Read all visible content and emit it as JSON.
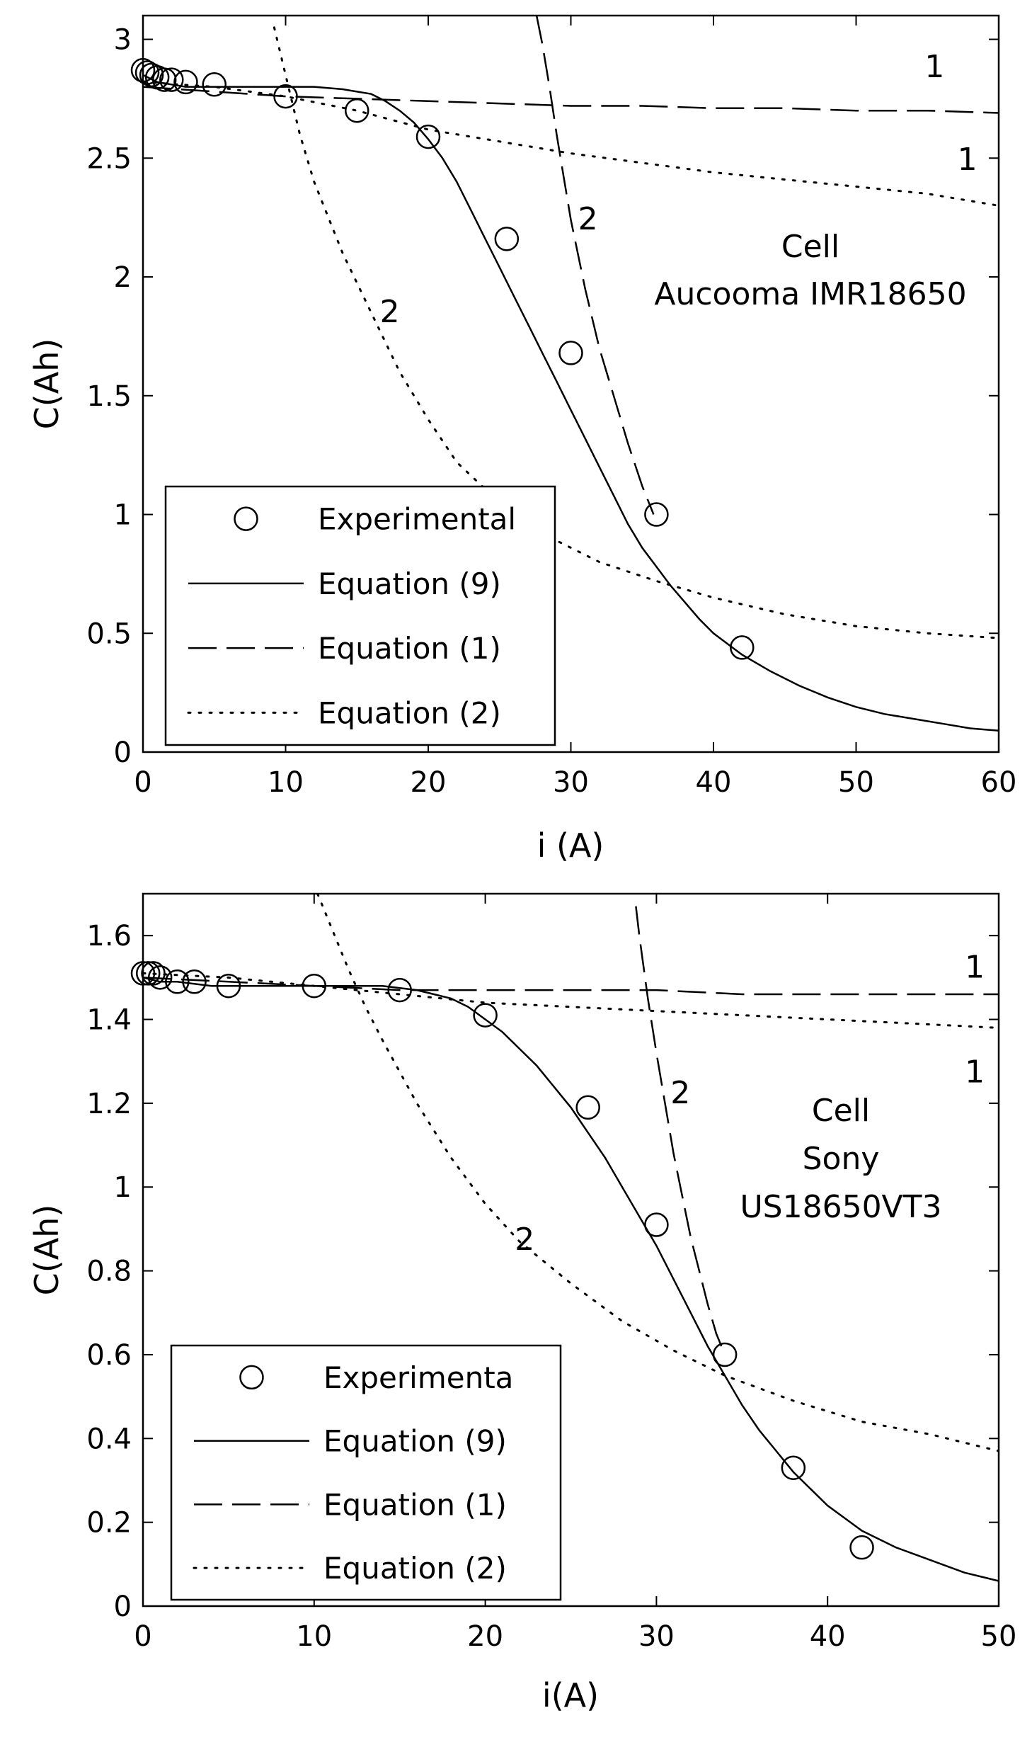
{
  "chart_data": [
    {
      "type": "line",
      "title": "",
      "xlabel": "i (A)",
      "ylabel": "C(Ah)",
      "xlim": [
        0,
        60
      ],
      "ylim": [
        0,
        3.1
      ],
      "xticks": [
        0,
        10,
        20,
        30,
        40,
        50,
        60
      ],
      "xtick_labels": [
        "0",
        "10",
        "20",
        "30",
        "40",
        "50",
        "60"
      ],
      "yticks": [
        0,
        0.5,
        1,
        1.5,
        2,
        2.5,
        3
      ],
      "ytick_labels": [
        "0",
        "0.5",
        "1",
        "1.5",
        "2",
        "2.5",
        "3"
      ],
      "grid": false,
      "legend_position": "bottom-left",
      "cell_label": [
        "Cell",
        "Aucooma IMR18650"
      ],
      "legend": [
        {
          "label": "Experimental",
          "style": "circle"
        },
        {
          "label": "Equation (9)",
          "style": "solid"
        },
        {
          "label": "Equation (1)",
          "style": "dashed"
        },
        {
          "label": "Equation (2)",
          "style": "dotted"
        }
      ],
      "series": [
        {
          "name": "Experimental",
          "style": "circle",
          "x": [
            0,
            0.3,
            0.6,
            1,
            1.5,
            2,
            3,
            5,
            10,
            15,
            20,
            25.5,
            30,
            36,
            42
          ],
          "y": [
            2.87,
            2.86,
            2.85,
            2.84,
            2.83,
            2.83,
            2.82,
            2.81,
            2.76,
            2.7,
            2.59,
            2.16,
            1.68,
            1.0,
            0.44
          ]
        },
        {
          "name": "Equation (9)",
          "style": "solid",
          "x": [
            0,
            1,
            2,
            3,
            5,
            8,
            10,
            12,
            14,
            15,
            16,
            17,
            18,
            19,
            20,
            21,
            22,
            23,
            24,
            25,
            26,
            27,
            28,
            29,
            30,
            31,
            32,
            33,
            34,
            35,
            36,
            37,
            38,
            39,
            40,
            42,
            44,
            46,
            48,
            50,
            52,
            54,
            56,
            58,
            60
          ],
          "y": [
            2.85,
            2.82,
            2.81,
            2.8,
            2.8,
            2.8,
            2.8,
            2.8,
            2.79,
            2.78,
            2.77,
            2.74,
            2.7,
            2.65,
            2.58,
            2.5,
            2.4,
            2.28,
            2.16,
            2.04,
            1.92,
            1.8,
            1.68,
            1.56,
            1.44,
            1.32,
            1.2,
            1.08,
            0.96,
            0.86,
            0.78,
            0.7,
            0.63,
            0.56,
            0.5,
            0.41,
            0.34,
            0.28,
            0.23,
            0.19,
            0.16,
            0.14,
            0.12,
            0.1,
            0.09
          ]
        },
        {
          "name": "Equation (1), curve 1",
          "style": "dashed",
          "x": [
            0,
            5,
            10,
            15,
            20,
            25,
            30,
            35,
            40,
            45,
            50,
            55,
            60
          ],
          "y": [
            2.8,
            2.78,
            2.76,
            2.75,
            2.74,
            2.73,
            2.72,
            2.72,
            2.71,
            2.71,
            2.7,
            2.7,
            2.69
          ]
        },
        {
          "name": "Equation (1), curve 2",
          "style": "dashed",
          "x": [
            27.6,
            28,
            28.5,
            29,
            29.5,
            30,
            31,
            32,
            33,
            34,
            35,
            35.8
          ],
          "y": [
            3.1,
            2.98,
            2.8,
            2.6,
            2.42,
            2.24,
            1.95,
            1.7,
            1.5,
            1.3,
            1.12,
            1.0
          ]
        },
        {
          "name": "Equation (2), curve 1",
          "style": "dotted",
          "x": [
            0,
            5,
            10,
            15,
            20,
            25,
            30,
            35,
            40,
            45,
            50,
            55,
            60
          ],
          "y": [
            2.82,
            2.8,
            2.76,
            2.7,
            2.62,
            2.57,
            2.52,
            2.48,
            2.44,
            2.41,
            2.38,
            2.35,
            2.3
          ]
        },
        {
          "name": "Equation (2), curve 2",
          "style": "dotted",
          "x": [
            9.2,
            10,
            11,
            12,
            14,
            16,
            18,
            20,
            22,
            25,
            28,
            32,
            36,
            40,
            45,
            50,
            55,
            60
          ],
          "y": [
            3.05,
            2.85,
            2.6,
            2.4,
            2.1,
            1.85,
            1.6,
            1.4,
            1.22,
            1.05,
            0.92,
            0.8,
            0.72,
            0.65,
            0.58,
            0.53,
            0.5,
            0.48
          ]
        }
      ],
      "annotations": [
        {
          "text": "1",
          "x": 55.5,
          "y": 2.84
        },
        {
          "text": "1",
          "x": 57.8,
          "y": 2.45
        },
        {
          "text": "2",
          "x": 31.2,
          "y": 2.2
        },
        {
          "text": "2",
          "x": 17.3,
          "y": 1.81
        }
      ]
    },
    {
      "type": "line",
      "title": "",
      "xlabel": "i(A)",
      "ylabel": "C(Ah)",
      "xlim": [
        0,
        50
      ],
      "ylim": [
        0,
        1.7
      ],
      "xticks": [
        0,
        10,
        20,
        30,
        40,
        50
      ],
      "xtick_labels": [
        "0",
        "10",
        "20",
        "30",
        "40",
        "50"
      ],
      "yticks": [
        0,
        0.2,
        0.4,
        0.6,
        0.8,
        1,
        1.2,
        1.4,
        1.6
      ],
      "ytick_labels": [
        "0",
        "0.2",
        "0.4",
        "0.6",
        "0.8",
        "1",
        "1.2",
        "1.4",
        "1.6"
      ],
      "grid": false,
      "legend_position": "bottom-left",
      "cell_label": [
        "Cell",
        "Sony",
        "US18650VT3"
      ],
      "legend": [
        {
          "label": "Experimenta",
          "style": "circle"
        },
        {
          "label": "Equation (9)",
          "style": "solid"
        },
        {
          "label": "Equation (1)",
          "style": "dashed"
        },
        {
          "label": "Equation (2)",
          "style": "dotted"
        }
      ],
      "series": [
        {
          "name": "Experimenta",
          "style": "circle",
          "x": [
            0,
            0.3,
            0.6,
            1,
            2,
            3,
            5,
            10,
            15,
            20,
            26,
            30,
            34,
            38,
            42
          ],
          "y": [
            1.51,
            1.51,
            1.51,
            1.5,
            1.49,
            1.49,
            1.48,
            1.48,
            1.47,
            1.41,
            1.19,
            0.91,
            0.6,
            0.33,
            0.14
          ]
        },
        {
          "name": "Equation (9)",
          "style": "solid",
          "x": [
            0,
            1,
            2,
            4,
            6,
            8,
            10,
            12,
            14,
            16,
            17,
            18,
            19,
            20,
            21,
            22,
            23,
            24,
            25,
            26,
            27,
            28,
            29,
            30,
            31,
            32,
            33,
            34,
            35,
            36,
            37,
            38,
            39,
            40,
            42,
            44,
            46,
            48,
            50
          ],
          "y": [
            1.5,
            1.49,
            1.49,
            1.48,
            1.48,
            1.48,
            1.48,
            1.48,
            1.48,
            1.47,
            1.46,
            1.45,
            1.43,
            1.4,
            1.37,
            1.33,
            1.29,
            1.24,
            1.19,
            1.13,
            1.07,
            1.0,
            0.93,
            0.86,
            0.78,
            0.7,
            0.62,
            0.55,
            0.48,
            0.42,
            0.37,
            0.32,
            0.28,
            0.24,
            0.18,
            0.14,
            0.11,
            0.08,
            0.06
          ]
        },
        {
          "name": "Equation (1), curve 1",
          "style": "dashed",
          "x": [
            0,
            5,
            10,
            15,
            20,
            25,
            30,
            35,
            40,
            45,
            50
          ],
          "y": [
            1.5,
            1.49,
            1.48,
            1.47,
            1.47,
            1.47,
            1.47,
            1.46,
            1.46,
            1.46,
            1.46
          ]
        },
        {
          "name": "Equation (1), curve 2",
          "style": "dashed",
          "x": [
            28.8,
            29,
            29.5,
            30,
            30.5,
            31,
            31.5,
            32,
            32.5,
            33,
            33.5,
            34
          ],
          "y": [
            1.67,
            1.6,
            1.45,
            1.32,
            1.2,
            1.08,
            0.98,
            0.88,
            0.8,
            0.72,
            0.65,
            0.6
          ]
        },
        {
          "name": "Equation (2), curve 1",
          "style": "dotted",
          "x": [
            0,
            5,
            10,
            15,
            20,
            25,
            30,
            35,
            40,
            45,
            50
          ],
          "y": [
            1.51,
            1.5,
            1.48,
            1.46,
            1.44,
            1.43,
            1.42,
            1.41,
            1.4,
            1.39,
            1.38
          ]
        },
        {
          "name": "Equation (2), curve 2",
          "style": "dotted",
          "x": [
            10.2,
            11,
            12,
            13,
            14,
            16,
            18,
            20,
            22,
            25,
            28,
            31,
            34,
            38,
            42,
            46,
            50
          ],
          "y": [
            1.7,
            1.62,
            1.52,
            1.43,
            1.35,
            1.2,
            1.07,
            0.96,
            0.87,
            0.77,
            0.68,
            0.61,
            0.55,
            0.49,
            0.44,
            0.41,
            0.37
          ]
        }
      ],
      "annotations": [
        {
          "text": "1",
          "x": 48.6,
          "y": 1.5
        },
        {
          "text": "1",
          "x": 48.6,
          "y": 1.25
        },
        {
          "text": "2",
          "x": 31.4,
          "y": 1.2
        },
        {
          "text": "2",
          "x": 22.3,
          "y": 0.85
        }
      ]
    }
  ]
}
